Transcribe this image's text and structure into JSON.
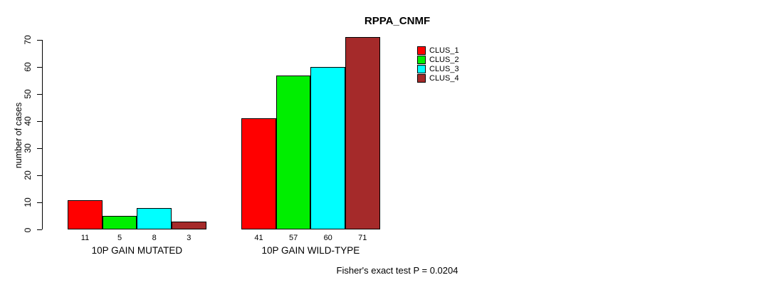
{
  "title": "RPPA_CNMF",
  "ylabel": "number of cases",
  "footnote": "Fisher's exact test P = 0.0204",
  "chart_data": {
    "type": "bar",
    "title": "RPPA_CNMF",
    "xlabel": "",
    "ylabel": "number of cases",
    "categories": [
      "10P GAIN MUTATED",
      "10P GAIN WILD-TYPE"
    ],
    "series": [
      {
        "name": "CLUS_1",
        "color": "#FF0000",
        "values": [
          11,
          41
        ]
      },
      {
        "name": "CLUS_2",
        "color": "#00EE00",
        "values": [
          5,
          57
        ]
      },
      {
        "name": "CLUS_3",
        "color": "#00FFFF",
        "values": [
          8,
          60
        ]
      },
      {
        "name": "CLUS_4",
        "color": "#A52A2A",
        "values": [
          3,
          71
        ]
      }
    ],
    "bar_value_labels": [
      [
        11,
        5,
        8,
        3
      ],
      [
        41,
        57,
        60,
        71
      ]
    ],
    "ylim": [
      0,
      70
    ],
    "yticks": [
      0,
      10,
      20,
      30,
      40,
      50,
      60,
      70
    ],
    "grid": false,
    "legend_position": "top-right",
    "annotation": "Fisher's exact test P = 0.0204",
    "bar_border_color": "#000000",
    "axis_color": "#000000"
  }
}
